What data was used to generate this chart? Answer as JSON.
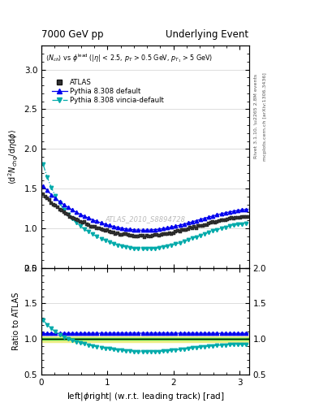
{
  "title_left": "7000 GeV pp",
  "title_right": "Underlying Event",
  "xlabel": "left|\\u03d5right| (w.r.t. leading track) [rad]",
  "ylabel_main": "\\u27e8d\\u00b2 N_{chg}/d\\u03b7d\\u03d5\\u27e9",
  "ylabel_ratio": "Ratio to ATLAS",
  "annotation": "ATLAS_2010_S8894728",
  "subtitle": "\\u27e8N_{ch}\\u27e9 vs \\u03d5^{lead} (|\\u03b7| < 2.5, p_{T} > 0.5 GeV, p_{T1} > 5 GeV)",
  "right_label_top": "Rivet 3.1.10, \\u2265 2.8M events",
  "right_label_bottom": "mcplots.cern.ch [arXiv:1306.3436]",
  "ylim_main": [
    0.5,
    3.3
  ],
  "ylim_ratio": [
    0.5,
    2.0
  ],
  "xlim": [
    0,
    3.14159
  ],
  "yticks_main": [
    0.5,
    1.0,
    1.5,
    2.0,
    2.5,
    3.0
  ],
  "yticks_ratio": [
    0.5,
    1.0,
    1.5,
    2.0
  ],
  "xticks": [
    0,
    1,
    2,
    3
  ],
  "background_color": "#ffffff",
  "grid_color": "#d0d0d0",
  "atlas_color": "#000000",
  "pythia_default_color": "#0000ee",
  "pythia_vincia_color": "#00aaaa",
  "band_color_yellow": "#eeee88",
  "band_color_green": "#44cc44",
  "n_points": 100
}
